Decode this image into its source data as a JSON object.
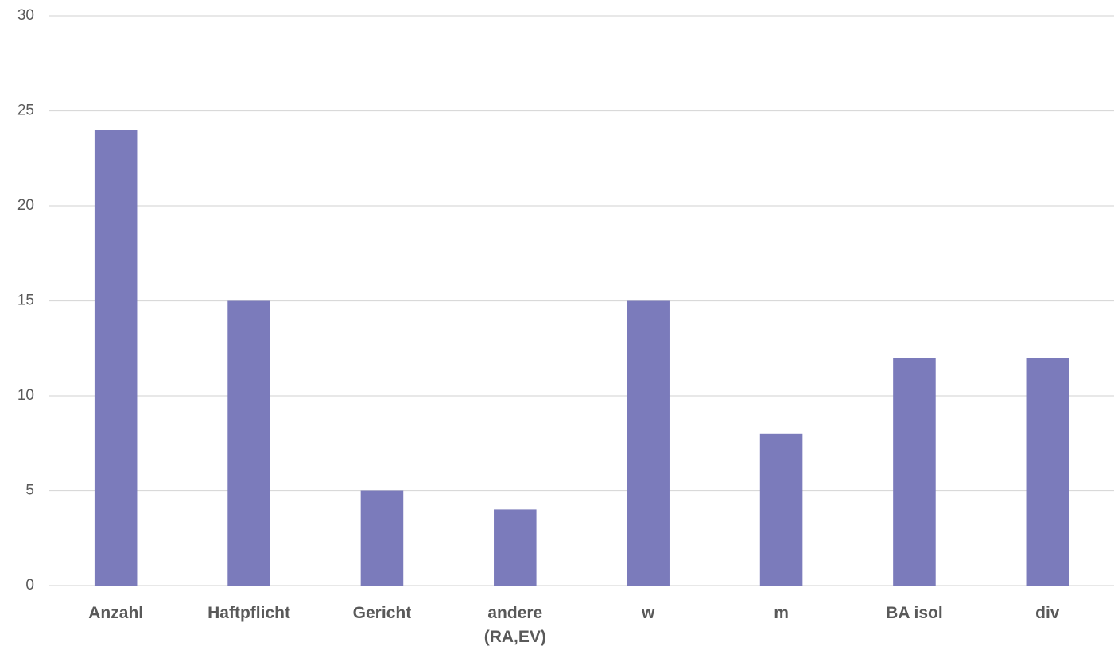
{
  "chart_data": {
    "type": "bar",
    "categories": [
      "Anzahl",
      "Haftpflicht",
      "Gericht",
      "andere (RA,EV)",
      "w",
      "m",
      "BA isol",
      "div"
    ],
    "values": [
      24,
      15,
      5,
      4,
      15,
      8,
      12,
      12
    ],
    "color": "#7b7bbb",
    "ylim": [
      0,
      30
    ],
    "yticks": [
      0,
      5,
      10,
      15,
      20,
      25,
      30
    ],
    "grid": true
  }
}
